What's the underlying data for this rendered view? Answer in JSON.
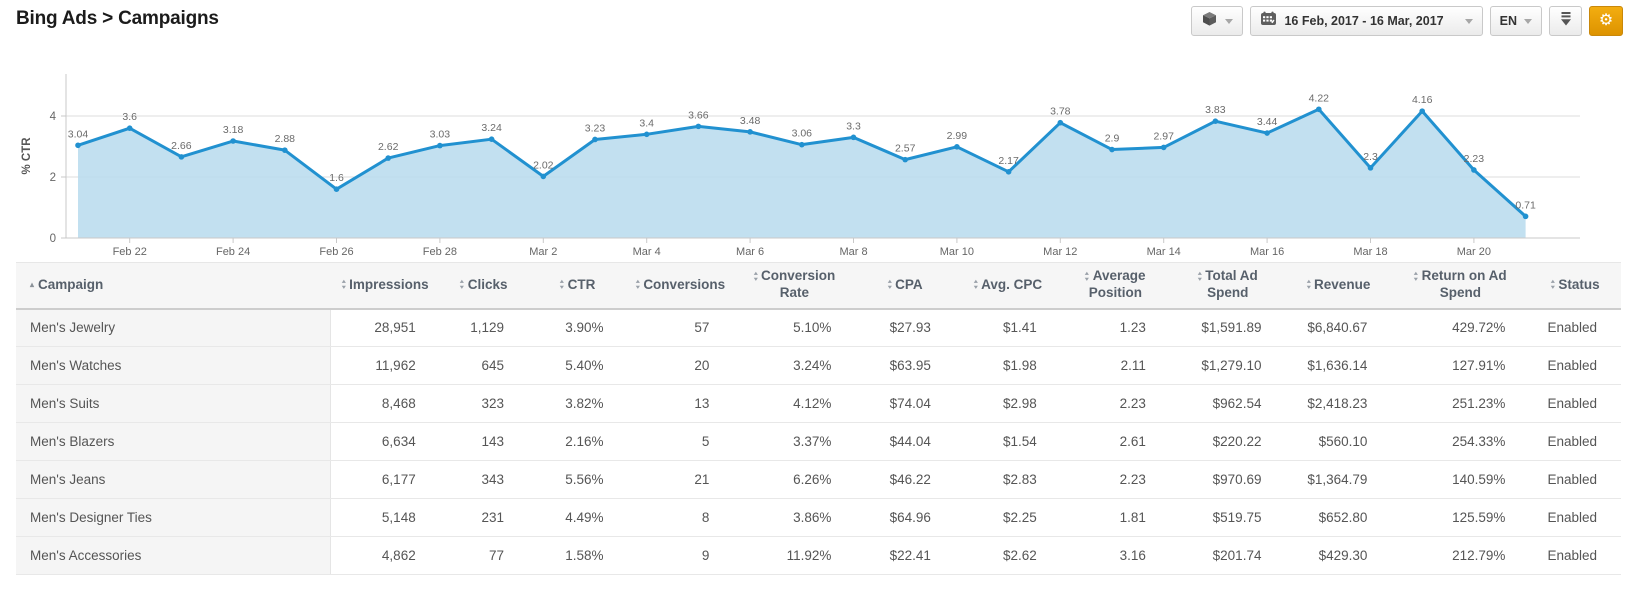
{
  "header": {
    "title": "Bing Ads > Campaigns"
  },
  "toolbar": {
    "module_picker_icon": "cube-icon",
    "date_range": "16 Feb, 2017 - 16 Mar, 2017",
    "language": "EN",
    "download_icon": "download-icon",
    "settings_icon": "gear-icon",
    "accent_color": "#e8a00a"
  },
  "chart_data": {
    "type": "area",
    "title": "",
    "ylabel": "% CTR",
    "x": [
      "Feb 21",
      "Feb 22",
      "Feb 23",
      "Feb 24",
      "Feb 25",
      "Feb 26",
      "Feb 27",
      "Feb 28",
      "Mar 1",
      "Mar 2",
      "Mar 3",
      "Mar 4",
      "Mar 5",
      "Mar 6",
      "Mar 7",
      "Mar 8",
      "Mar 9",
      "Mar 10",
      "Mar 11",
      "Mar 12",
      "Mar 13",
      "Mar 14",
      "Mar 15",
      "Mar 16",
      "Mar 17",
      "Mar 18",
      "Mar 19",
      "Mar 20",
      "Mar 21"
    ],
    "values": [
      3.04,
      3.6,
      2.66,
      3.18,
      2.88,
      1.6,
      2.62,
      3.03,
      3.24,
      2.02,
      3.23,
      3.4,
      3.66,
      3.48,
      3.06,
      3.3,
      2.57,
      2.99,
      2.17,
      3.78,
      2.9,
      2.97,
      3.83,
      3.44,
      4.22,
      2.3,
      4.16,
      2.23,
      0.71
    ],
    "yticks": [
      0,
      2,
      4
    ],
    "ylim": [
      0,
      5.6
    ],
    "xtick_start": 1,
    "xtick_every": 2,
    "grid": true,
    "legend": "none",
    "point_labels": true,
    "line_color": "#2191d0",
    "fill_color": "#b9dcee",
    "axis_color": "#c9c9c9",
    "tick_text_color": "#666666"
  },
  "table": {
    "columns": [
      {
        "label": "Campaign",
        "sort": "asc"
      },
      {
        "label": "Impressions",
        "sort": "both"
      },
      {
        "label": "Clicks",
        "sort": "both"
      },
      {
        "label": "CTR",
        "sort": "both"
      },
      {
        "label": "Conversions",
        "sort": "both"
      },
      {
        "label": "Conversion Rate",
        "sort": "both"
      },
      {
        "label": "CPA",
        "sort": "both"
      },
      {
        "label": "Avg. CPC",
        "sort": "both"
      },
      {
        "label": "Average Position",
        "sort": "both"
      },
      {
        "label": "Total Ad Spend",
        "sort": "both"
      },
      {
        "label": "Revenue",
        "sort": "both"
      },
      {
        "label": "Return on Ad Spend",
        "sort": "both"
      },
      {
        "label": "Status",
        "sort": "both"
      }
    ],
    "rows": [
      [
        "Men's Jewelry",
        "28,951",
        "1,129",
        "3.90%",
        "57",
        "5.10%",
        "$27.93",
        "$1.41",
        "1.23",
        "$1,591.89",
        "$6,840.67",
        "429.72%",
        "Enabled"
      ],
      [
        "Men's Watches",
        "11,962",
        "645",
        "5.40%",
        "20",
        "3.24%",
        "$63.95",
        "$1.98",
        "2.11",
        "$1,279.10",
        "$1,636.14",
        "127.91%",
        "Enabled"
      ],
      [
        "Men's Suits",
        "8,468",
        "323",
        "3.82%",
        "13",
        "4.12%",
        "$74.04",
        "$2.98",
        "2.23",
        "$962.54",
        "$2,418.23",
        "251.23%",
        "Enabled"
      ],
      [
        "Men's Blazers",
        "6,634",
        "143",
        "2.16%",
        "5",
        "3.37%",
        "$44.04",
        "$1.54",
        "2.61",
        "$220.22",
        "$560.10",
        "254.33%",
        "Enabled"
      ],
      [
        "Men's Jeans",
        "6,177",
        "343",
        "5.56%",
        "21",
        "6.26%",
        "$46.22",
        "$2.83",
        "2.23",
        "$970.69",
        "$1,364.79",
        "140.59%",
        "Enabled"
      ],
      [
        "Men's Designer Ties",
        "5,148",
        "231",
        "4.49%",
        "8",
        "3.86%",
        "$64.96",
        "$2.25",
        "1.81",
        "$519.75",
        "$652.80",
        "125.59%",
        "Enabled"
      ],
      [
        "Men's Accessories",
        "4,862",
        "77",
        "1.58%",
        "9",
        "11.92%",
        "$22.41",
        "$2.62",
        "3.16",
        "$201.74",
        "$429.30",
        "212.79%",
        "Enabled"
      ]
    ]
  }
}
